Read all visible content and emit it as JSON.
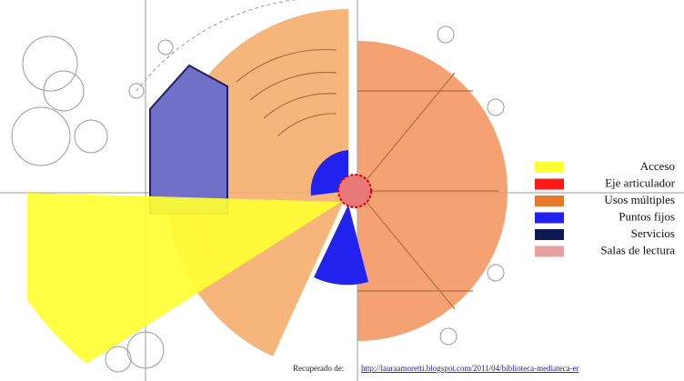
{
  "legend": [
    {
      "label": "Acceso",
      "color": "#ffff33"
    },
    {
      "label": "Eje articulador",
      "color": "#ff1a1a"
    },
    {
      "label": "Usos múltiples",
      "color": "#e8782a"
    },
    {
      "label": "Puntos fijos",
      "color": "#2222ee"
    },
    {
      "label": "Servicios",
      "color": "#0d1a55"
    },
    {
      "label": "Salas de lectura",
      "color": "#e8a0a0"
    }
  ],
  "caption": {
    "prefix": "Recuperado de:",
    "link": "http://lauraamoretti.blogspot.com/2011/04/biblioteca-mediateca-er"
  }
}
